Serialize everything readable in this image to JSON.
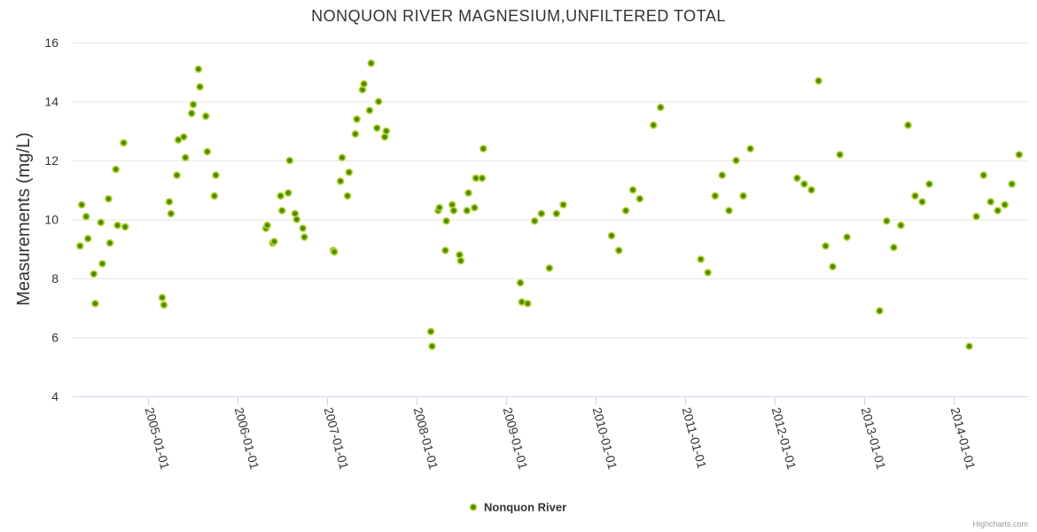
{
  "colors": {
    "marker_fill": "#4a8c00",
    "marker_stroke": "#b5d334"
  },
  "chart_data": {
    "type": "scatter",
    "title": "NONQUON RIVER MAGNESIUM,UNFILTERED TOTAL",
    "xlabel": "",
    "ylabel": "Measurements (mg/L)",
    "ylim": [
      4,
      16
    ],
    "yticks": [
      4,
      6,
      8,
      10,
      12,
      14,
      16
    ],
    "xlim": [
      "2004-03-01",
      "2014-11-01"
    ],
    "xticks": [
      "2005-01-01",
      "2006-01-01",
      "2007-01-01",
      "2008-01-01",
      "2009-01-01",
      "2010-01-01",
      "2011-01-01",
      "2012-01-01",
      "2013-01-01",
      "2014-01-01"
    ],
    "grid": true,
    "legend": "bottom-center",
    "series": [
      {
        "name": "Nonquon River",
        "points": [
          [
            "2004-03-31",
            9.1
          ],
          [
            "2004-04-07",
            10.5
          ],
          [
            "2004-04-25",
            10.1
          ],
          [
            "2004-05-02",
            9.35
          ],
          [
            "2004-05-26",
            8.15
          ],
          [
            "2004-06-01",
            7.15
          ],
          [
            "2004-06-24",
            9.9
          ],
          [
            "2004-06-30",
            8.5
          ],
          [
            "2004-07-25",
            10.7
          ],
          [
            "2004-07-31",
            9.2
          ],
          [
            "2004-08-24",
            11.7
          ],
          [
            "2004-08-31",
            9.8
          ],
          [
            "2004-09-25",
            12.6
          ],
          [
            "2004-10-01",
            9.75
          ],
          [
            "2005-03-01",
            7.35
          ],
          [
            "2005-03-08",
            7.1
          ],
          [
            "2005-03-30",
            10.6
          ],
          [
            "2005-04-06",
            10.2
          ],
          [
            "2005-04-30",
            11.5
          ],
          [
            "2005-05-06",
            12.7
          ],
          [
            "2005-05-28",
            12.8
          ],
          [
            "2005-06-04",
            12.1
          ],
          [
            "2005-06-29",
            13.6
          ],
          [
            "2005-07-06",
            13.9
          ],
          [
            "2005-07-27",
            15.1
          ],
          [
            "2005-08-02",
            14.5
          ],
          [
            "2005-08-26",
            13.5
          ],
          [
            "2005-09-01",
            12.3
          ],
          [
            "2005-09-30",
            10.8
          ],
          [
            "2005-10-06",
            11.5
          ],
          [
            "2006-04-28",
            9.7
          ],
          [
            "2006-05-04",
            9.8
          ],
          [
            "2006-05-26",
            9.2
          ],
          [
            "2006-06-01",
            9.25
          ],
          [
            "2006-06-27",
            10.8
          ],
          [
            "2006-07-03",
            10.3
          ],
          [
            "2006-07-28",
            10.9
          ],
          [
            "2006-08-03",
            12.0
          ],
          [
            "2006-08-25",
            10.2
          ],
          [
            "2006-09-01",
            10.0
          ],
          [
            "2006-09-26",
            9.7
          ],
          [
            "2006-10-02",
            9.4
          ],
          [
            "2007-01-28",
            8.95
          ],
          [
            "2007-02-01",
            8.9
          ],
          [
            "2007-02-26",
            11.3
          ],
          [
            "2007-03-05",
            12.1
          ],
          [
            "2007-03-27",
            10.8
          ],
          [
            "2007-04-02",
            11.6
          ],
          [
            "2007-04-28",
            12.9
          ],
          [
            "2007-05-04",
            13.4
          ],
          [
            "2007-05-27",
            14.4
          ],
          [
            "2007-06-02",
            14.6
          ],
          [
            "2007-06-25",
            13.7
          ],
          [
            "2007-07-01",
            15.3
          ],
          [
            "2007-07-25",
            13.1
          ],
          [
            "2007-08-01",
            14.0
          ],
          [
            "2007-08-26",
            12.8
          ],
          [
            "2007-09-01",
            13.0
          ],
          [
            "2008-03-01",
            6.2
          ],
          [
            "2008-03-06",
            5.7
          ],
          [
            "2008-03-31",
            10.3
          ],
          [
            "2008-04-05",
            10.4
          ],
          [
            "2008-04-29",
            8.95
          ],
          [
            "2008-05-03",
            9.95
          ],
          [
            "2008-05-27",
            10.5
          ],
          [
            "2008-06-02",
            10.3
          ],
          [
            "2008-06-26",
            8.8
          ],
          [
            "2008-07-01",
            8.6
          ],
          [
            "2008-07-26",
            10.3
          ],
          [
            "2008-08-01",
            10.9
          ],
          [
            "2008-08-26",
            10.4
          ],
          [
            "2008-09-01",
            11.4
          ],
          [
            "2008-09-26",
            11.4
          ],
          [
            "2008-10-01",
            12.4
          ],
          [
            "2009-03-01",
            7.85
          ],
          [
            "2009-03-07",
            7.2
          ],
          [
            "2009-03-31",
            7.15
          ],
          [
            "2009-04-28",
            9.95
          ],
          [
            "2009-05-26",
            10.2
          ],
          [
            "2009-06-27",
            8.35
          ],
          [
            "2009-07-26",
            10.2
          ],
          [
            "2009-08-23",
            10.5
          ],
          [
            "2010-03-08",
            9.45
          ],
          [
            "2010-04-07",
            8.95
          ],
          [
            "2010-05-05",
            10.3
          ],
          [
            "2010-06-03",
            11.0
          ],
          [
            "2010-07-01",
            10.7
          ],
          [
            "2010-08-26",
            13.2
          ],
          [
            "2010-09-24",
            13.8
          ],
          [
            "2011-03-07",
            8.65
          ],
          [
            "2011-04-05",
            8.2
          ],
          [
            "2011-05-04",
            10.8
          ],
          [
            "2011-06-02",
            11.5
          ],
          [
            "2011-06-30",
            10.3
          ],
          [
            "2011-07-29",
            12.0
          ],
          [
            "2011-08-27",
            10.8
          ],
          [
            "2011-09-25",
            12.4
          ],
          [
            "2012-04-03",
            11.4
          ],
          [
            "2012-05-02",
            11.2
          ],
          [
            "2012-05-31",
            11.0
          ],
          [
            "2012-06-29",
            14.7
          ],
          [
            "2012-07-28",
            9.1
          ],
          [
            "2012-08-26",
            8.4
          ],
          [
            "2012-09-24",
            12.2
          ],
          [
            "2012-10-23",
            9.4
          ],
          [
            "2013-03-05",
            6.9
          ],
          [
            "2013-04-03",
            9.95
          ],
          [
            "2013-05-02",
            9.05
          ],
          [
            "2013-05-31",
            9.8
          ],
          [
            "2013-06-29",
            13.2
          ],
          [
            "2013-07-28",
            10.8
          ],
          [
            "2013-08-26",
            10.6
          ],
          [
            "2013-09-24",
            11.2
          ],
          [
            "2014-03-06",
            5.7
          ],
          [
            "2014-04-04",
            10.1
          ],
          [
            "2014-05-03",
            11.5
          ],
          [
            "2014-06-01",
            10.6
          ],
          [
            "2014-06-30",
            10.3
          ],
          [
            "2014-07-29",
            10.5
          ],
          [
            "2014-08-27",
            11.2
          ],
          [
            "2014-09-25",
            12.2
          ]
        ]
      }
    ]
  },
  "credits": "Highcharts.com"
}
